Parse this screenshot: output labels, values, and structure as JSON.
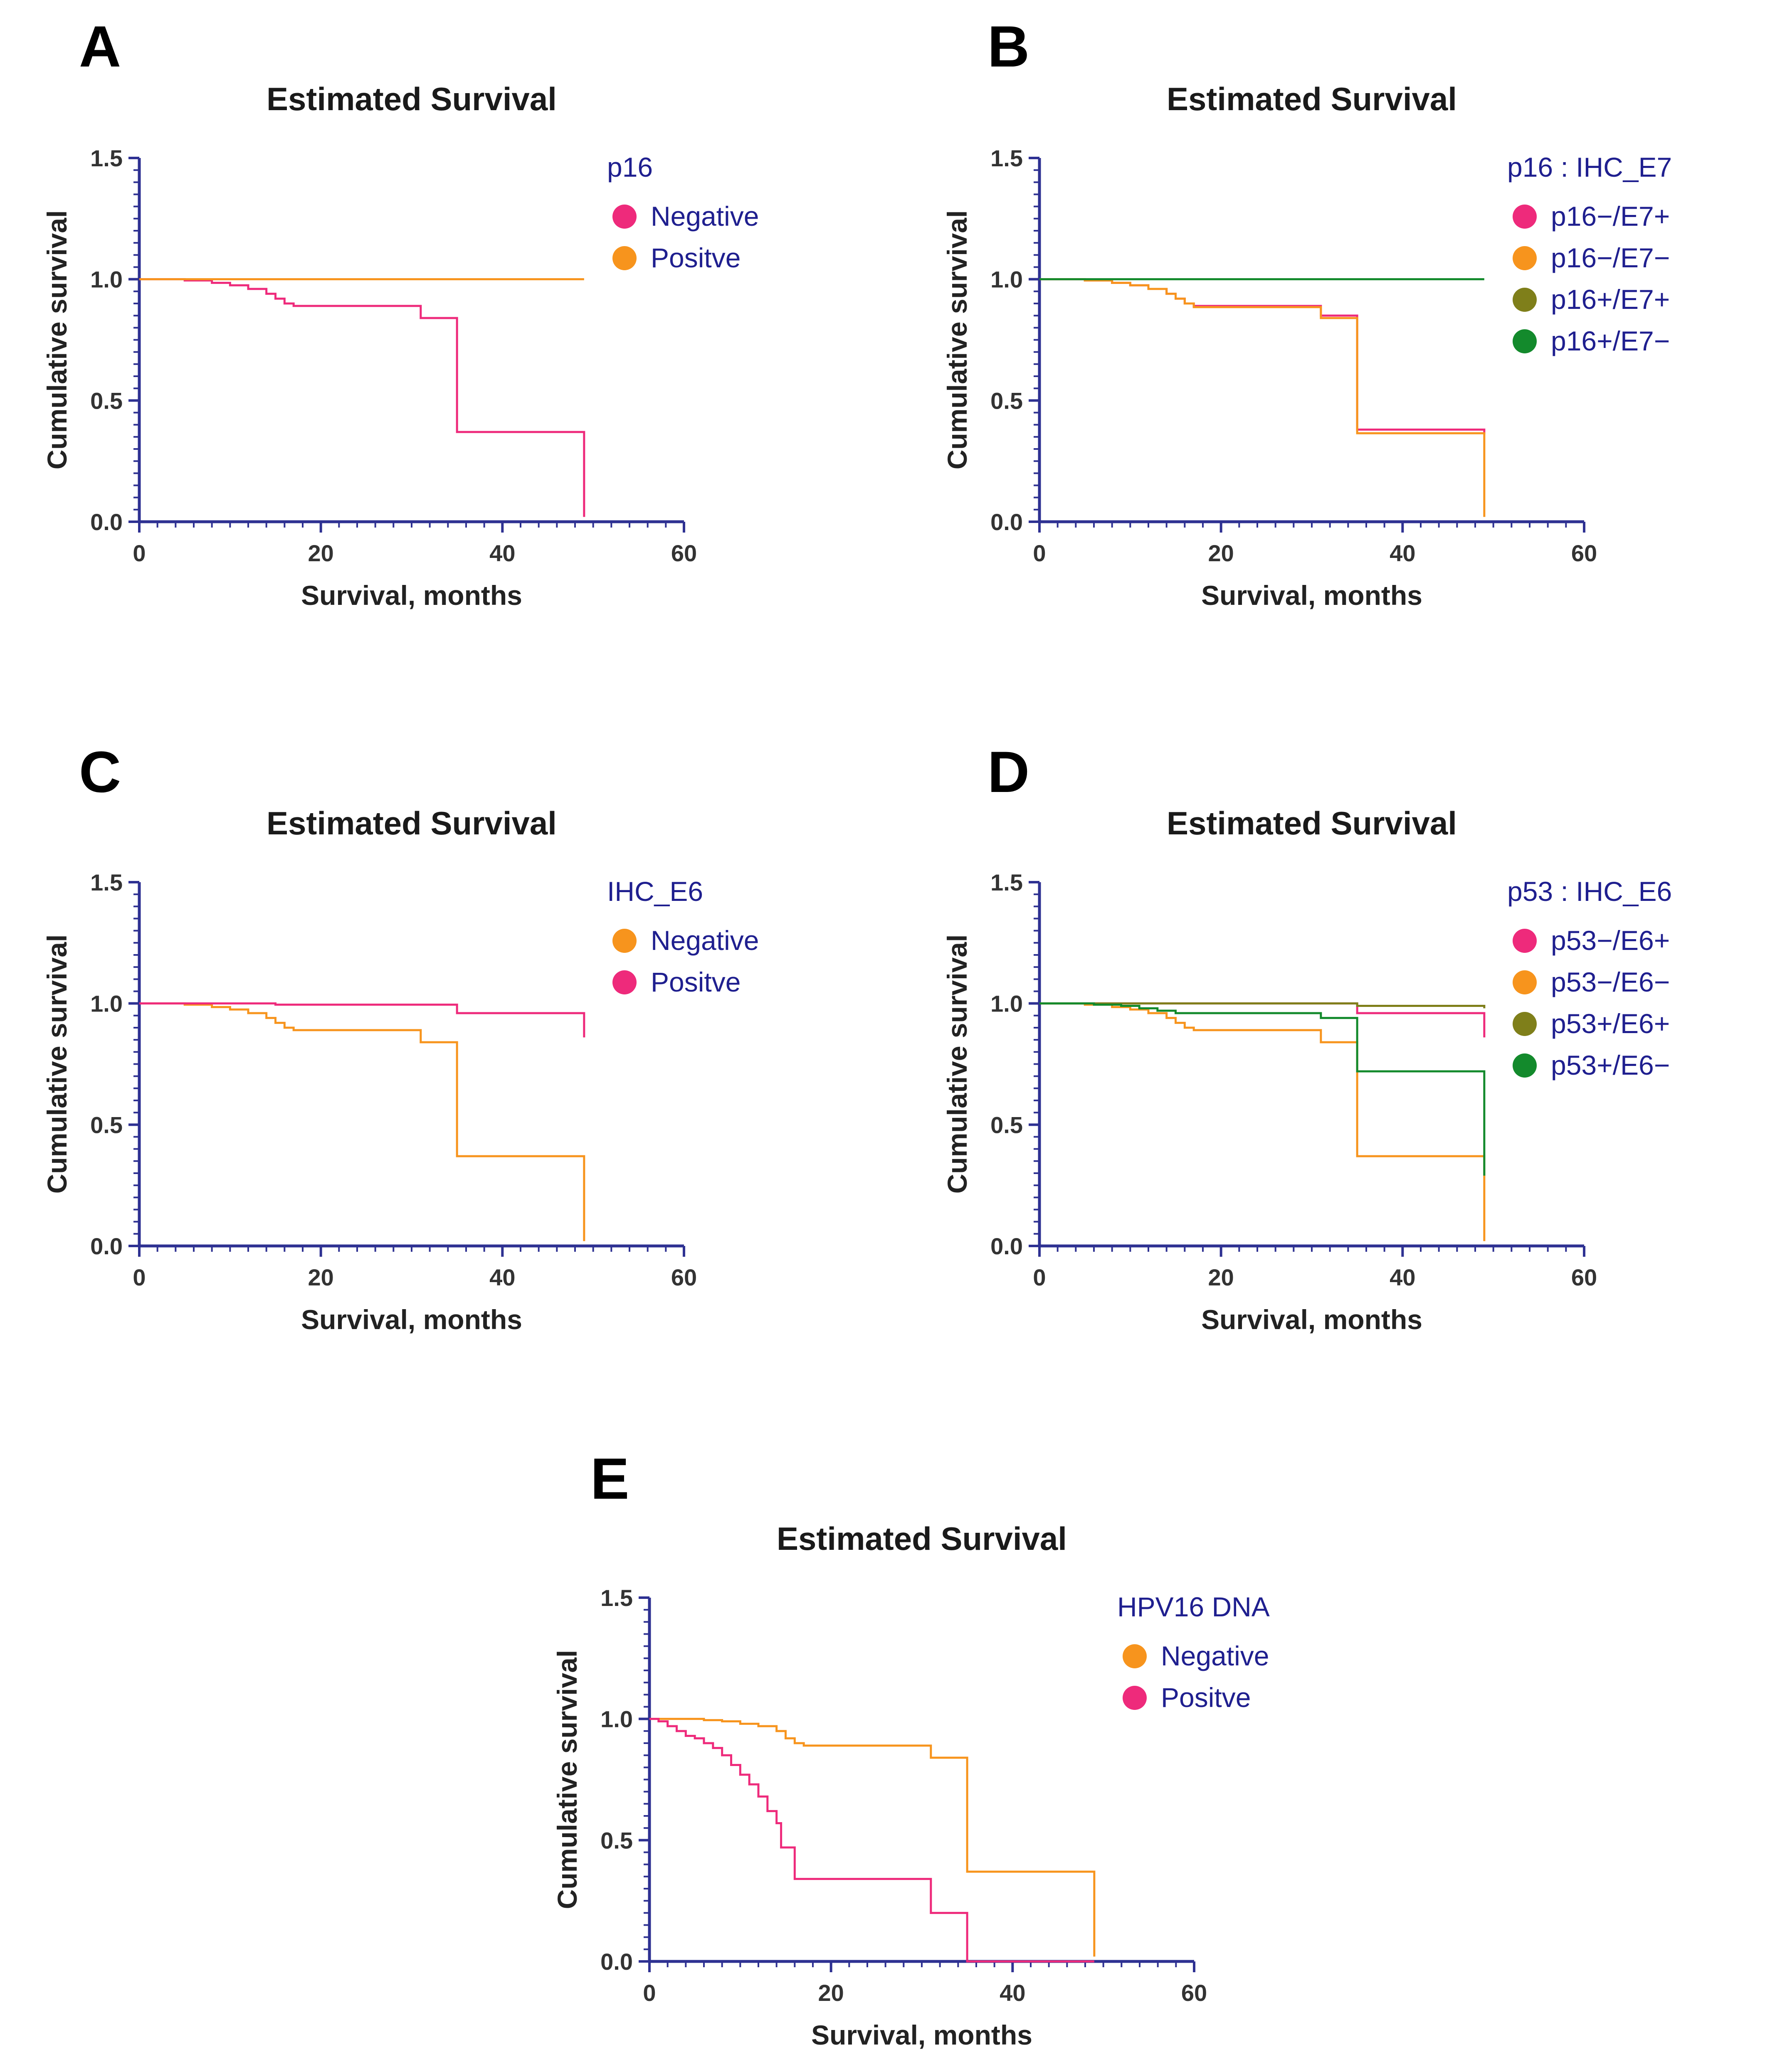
{
  "figure": {
    "panel_letters": [
      "A",
      "B",
      "C",
      "D",
      "E"
    ]
  },
  "colors": {
    "axis": "#2e3192",
    "legend_text": "#1f1f8f",
    "pink": "#ee2a7b",
    "orange": "#f7941d",
    "olive": "#7f7f1a",
    "green": "#138a2c",
    "red": "#ed1c24"
  },
  "chart_data": [
    {
      "panel": "A",
      "type": "line",
      "title": "Estimated Survival",
      "xlabel": "Survival, months",
      "ylabel": "Cumulative survival",
      "xlim": [
        0,
        60
      ],
      "ylim": [
        0,
        1.5
      ],
      "xticks": [
        "0",
        "20",
        "40",
        "60"
      ],
      "yticks": [
        "0.0",
        "0.5",
        "1.0",
        "1.5"
      ],
      "legend": {
        "title": "p16",
        "position": "top-right",
        "entries": [
          {
            "label": "Negative",
            "color": "#ee2a7b"
          },
          {
            "label": "Positve",
            "color": "#f7941d"
          }
        ]
      },
      "series": [
        {
          "name": "Negative",
          "color": "#ee2a7b",
          "points": [
            [
              0,
              1.0
            ],
            [
              5,
              0.995
            ],
            [
              8,
              0.985
            ],
            [
              10,
              0.975
            ],
            [
              12,
              0.96
            ],
            [
              14,
              0.94
            ],
            [
              15,
              0.92
            ],
            [
              16,
              0.9
            ],
            [
              17,
              0.89
            ],
            [
              31,
              0.84
            ],
            [
              35,
              0.37
            ],
            [
              49,
              0.02
            ]
          ]
        },
        {
          "name": "Positve",
          "color": "#f7941d",
          "points": [
            [
              0,
              1.0
            ],
            [
              49,
              1.0
            ]
          ]
        }
      ]
    },
    {
      "panel": "B",
      "type": "line",
      "title": "Estimated Survival",
      "xlabel": "Survival, months",
      "ylabel": "Cumulative survival",
      "xlim": [
        0,
        60
      ],
      "ylim": [
        0,
        1.5
      ],
      "xticks": [
        "0",
        "20",
        "40",
        "60"
      ],
      "yticks": [
        "0.0",
        "0.5",
        "1.0",
        "1.5"
      ],
      "legend": {
        "title": "p16 : IHC_E7",
        "position": "top-right",
        "entries": [
          {
            "label": "p16−/E7+",
            "color": "#ee2a7b"
          },
          {
            "label": "p16−/E7−",
            "color": "#f7941d"
          },
          {
            "label": "p16+/E7+",
            "color": "#7f7f1a"
          },
          {
            "label": "p16+/E7−",
            "color": "#138a2c"
          }
        ]
      },
      "series": [
        {
          "name": "p16−/E7+",
          "color": "#ee2a7b",
          "points": [
            [
              0,
              1.0
            ],
            [
              5,
              0.995
            ],
            [
              8,
              0.985
            ],
            [
              10,
              0.975
            ],
            [
              12,
              0.96
            ],
            [
              14,
              0.94
            ],
            [
              15,
              0.92
            ],
            [
              16,
              0.9
            ],
            [
              17,
              0.89
            ],
            [
              31,
              0.85
            ],
            [
              35,
              0.38
            ],
            [
              49,
              0.36
            ]
          ]
        },
        {
          "name": "p16−/E7−",
          "color": "#f7941d",
          "points": [
            [
              0,
              1.0
            ],
            [
              5,
              0.995
            ],
            [
              8,
              0.985
            ],
            [
              10,
              0.975
            ],
            [
              12,
              0.96
            ],
            [
              14,
              0.94
            ],
            [
              15,
              0.92
            ],
            [
              16,
              0.9
            ],
            [
              17,
              0.885
            ],
            [
              31,
              0.84
            ],
            [
              35,
              0.365
            ],
            [
              49,
              0.02
            ]
          ]
        },
        {
          "name": "p16+/E7−",
          "color": "#138a2c",
          "points": [
            [
              0,
              1.0
            ],
            [
              49,
              1.0
            ]
          ]
        }
      ]
    },
    {
      "panel": "C",
      "type": "line",
      "title": "Estimated Survival",
      "xlabel": "Survival, months",
      "ylabel": "Cumulative survival",
      "xlim": [
        0,
        60
      ],
      "ylim": [
        0,
        1.5
      ],
      "xticks": [
        "0",
        "20",
        "40",
        "60"
      ],
      "yticks": [
        "0.0",
        "0.5",
        "1.0",
        "1.5"
      ],
      "legend": {
        "title": "IHC_E6",
        "position": "top-right",
        "entries": [
          {
            "label": "Negative",
            "color": "#f7941d"
          },
          {
            "label": "Positve",
            "color": "#ee2a7b"
          }
        ]
      },
      "series": [
        {
          "name": "Negative",
          "color": "#f7941d",
          "points": [
            [
              0,
              1.0
            ],
            [
              5,
              0.995
            ],
            [
              8,
              0.985
            ],
            [
              10,
              0.975
            ],
            [
              12,
              0.96
            ],
            [
              14,
              0.94
            ],
            [
              15,
              0.92
            ],
            [
              16,
              0.9
            ],
            [
              17,
              0.89
            ],
            [
              31,
              0.84
            ],
            [
              35,
              0.37
            ],
            [
              49,
              0.02
            ]
          ]
        },
        {
          "name": "Positve",
          "color": "#ee2a7b",
          "points": [
            [
              0,
              1.0
            ],
            [
              15,
              0.995
            ],
            [
              35,
              0.96
            ],
            [
              49,
              0.86
            ]
          ]
        }
      ]
    },
    {
      "panel": "D",
      "type": "line",
      "title": "Estimated Survival",
      "xlabel": "Survival, months",
      "ylabel": "Cumulative survival",
      "xlim": [
        0,
        60
      ],
      "ylim": [
        0,
        1.5
      ],
      "xticks": [
        "0",
        "20",
        "40",
        "60"
      ],
      "yticks": [
        "0.0",
        "0.5",
        "1.0",
        "1.5"
      ],
      "legend": {
        "title": "p53 : IHC_E6",
        "position": "top-right",
        "entries": [
          {
            "label": "p53−/E6+",
            "color": "#ee2a7b"
          },
          {
            "label": "p53−/E6−",
            "color": "#f7941d"
          },
          {
            "label": "p53+/E6+",
            "color": "#7f7f1a"
          },
          {
            "label": "p53+/E6−",
            "color": "#138a2c"
          }
        ]
      },
      "series": [
        {
          "name": "p53−/E6+",
          "color": "#ee2a7b",
          "points": [
            [
              0,
              1.0
            ],
            [
              35,
              0.96
            ],
            [
              49,
              0.86
            ]
          ]
        },
        {
          "name": "p53−/E6−",
          "color": "#f7941d",
          "points": [
            [
              0,
              1.0
            ],
            [
              5,
              0.995
            ],
            [
              8,
              0.985
            ],
            [
              10,
              0.975
            ],
            [
              12,
              0.96
            ],
            [
              14,
              0.94
            ],
            [
              15,
              0.92
            ],
            [
              16,
              0.9
            ],
            [
              17,
              0.89
            ],
            [
              31,
              0.84
            ],
            [
              35,
              0.37
            ],
            [
              49,
              0.02
            ]
          ]
        },
        {
          "name": "p53+/E6+",
          "color": "#7f7f1a",
          "points": [
            [
              0,
              1.0
            ],
            [
              35,
              0.99
            ],
            [
              49,
              0.98
            ]
          ]
        },
        {
          "name": "p53+/E6−",
          "color": "#138a2c",
          "points": [
            [
              0,
              1.0
            ],
            [
              6,
              0.995
            ],
            [
              9,
              0.99
            ],
            [
              11,
              0.98
            ],
            [
              13,
              0.97
            ],
            [
              15,
              0.96
            ],
            [
              31,
              0.94
            ],
            [
              35,
              0.72
            ],
            [
              49,
              0.29
            ]
          ]
        }
      ]
    },
    {
      "panel": "E",
      "type": "line",
      "title": "Estimated Survival",
      "xlabel": "Survival, months",
      "ylabel": "Cumulative survival",
      "xlim": [
        0,
        60
      ],
      "ylim": [
        0,
        1.5
      ],
      "xticks": [
        "0",
        "20",
        "40",
        "60"
      ],
      "yticks": [
        "0.0",
        "0.5",
        "1.0",
        "1.5"
      ],
      "legend": {
        "title": "HPV16 DNA",
        "position": "top-right",
        "entries": [
          {
            "label": "Negative",
            "color": "#f7941d"
          },
          {
            "label": "Positve",
            "color": "#ee2a7b"
          }
        ]
      },
      "series": [
        {
          "name": "Negative",
          "color": "#f7941d",
          "points": [
            [
              0,
              1.0
            ],
            [
              6,
              0.995
            ],
            [
              8,
              0.99
            ],
            [
              10,
              0.98
            ],
            [
              12,
              0.97
            ],
            [
              14,
              0.95
            ],
            [
              15,
              0.92
            ],
            [
              16,
              0.9
            ],
            [
              17,
              0.89
            ],
            [
              31,
              0.84
            ],
            [
              35,
              0.37
            ],
            [
              49,
              0.02
            ]
          ]
        },
        {
          "name": "Positve",
          "color": "#ee2a7b",
          "points": [
            [
              0,
              1.0
            ],
            [
              1,
              0.99
            ],
            [
              2,
              0.97
            ],
            [
              3,
              0.95
            ],
            [
              4,
              0.93
            ],
            [
              5,
              0.92
            ],
            [
              6,
              0.9
            ],
            [
              7,
              0.88
            ],
            [
              8,
              0.85
            ],
            [
              9,
              0.81
            ],
            [
              10,
              0.77
            ],
            [
              11,
              0.73
            ],
            [
              12,
              0.68
            ],
            [
              13,
              0.62
            ],
            [
              14,
              0.57
            ],
            [
              14.5,
              0.47
            ],
            [
              16,
              0.34
            ],
            [
              31,
              0.2
            ],
            [
              35,
              0.0
            ],
            [
              49,
              0.0
            ]
          ]
        }
      ]
    }
  ]
}
